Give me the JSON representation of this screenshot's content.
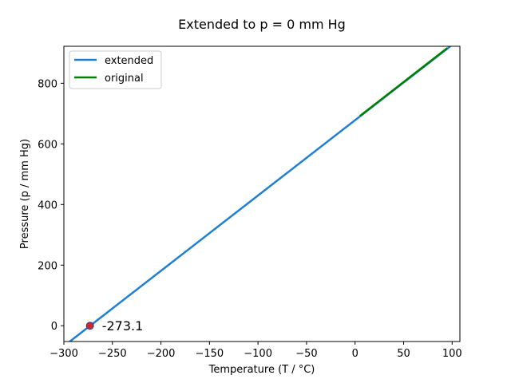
{
  "chart_data": {
    "type": "line",
    "title": "Extended to p = 0 mm Hg",
    "xlabel": "Temperature (T / °C)",
    "ylabel": "Pressure (p / mm Hg)",
    "xlim": [
      -300,
      108
    ],
    "ylim": [
      -52,
      922
    ],
    "xticks": [
      -300,
      -250,
      -200,
      -150,
      -100,
      -50,
      0,
      50,
      100
    ],
    "yticks": [
      0,
      200,
      400,
      600,
      800
    ],
    "xtick_labels": [
      "−300",
      "−250",
      "−200",
      "−150",
      "−100",
      "−50",
      "0",
      "50",
      "100"
    ],
    "ytick_labels": [
      "0",
      "200",
      "400",
      "600",
      "800"
    ],
    "series": [
      {
        "name": "extended",
        "color": "#1f7fd0",
        "x": [
          -300,
          108
        ],
        "y": [
          -67.2,
          946.5
        ]
      },
      {
        "name": "original",
        "color": "#008000",
        "x": [
          5,
          95
        ],
        "y": [
          692.0,
          916.0
        ]
      }
    ],
    "points": [
      {
        "x": -273.1,
        "y": 0,
        "color": "#d62728",
        "label": "-273.1"
      }
    ],
    "legend": {
      "position": "top-left",
      "entries": [
        "extended",
        "original"
      ]
    },
    "grid": false
  }
}
